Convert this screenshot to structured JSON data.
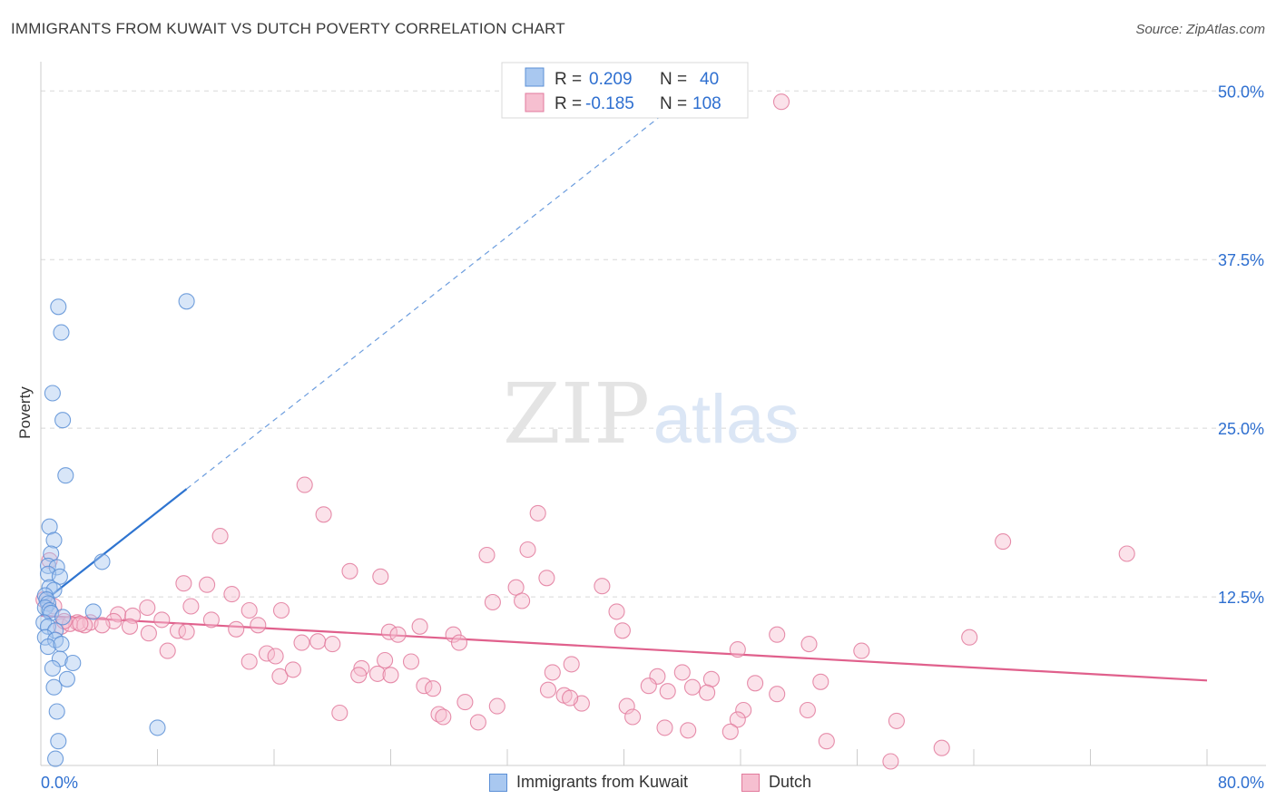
{
  "title": "IMMIGRANTS FROM KUWAIT VS DUTCH POVERTY CORRELATION CHART",
  "source": "Source: ZipAtlas.com",
  "colors": {
    "kuwait_fill": "#a9c8f0",
    "kuwait_stroke": "#5b8fd6",
    "kuwait_line": "#2e74d0",
    "dutch_fill": "#f6bfd0",
    "dutch_stroke": "#e27a9c",
    "dutch_line": "#e0608c",
    "value_text": "#2e6fd0",
    "grid": "#d8d8d8"
  },
  "watermark": {
    "part1": "ZIP",
    "part2": "atlas"
  },
  "legend_top": {
    "rows": [
      {
        "series": "Immigrants from Kuwait",
        "r_label": "R =",
        "r_value": "0.209",
        "n_label": "N =",
        "n_value": "40"
      },
      {
        "series": "Dutch",
        "r_label": "R =",
        "r_value": "-0.185",
        "n_label": "N =",
        "n_value": "108"
      }
    ]
  },
  "legend_bottom": [
    "Immigrants from Kuwait",
    "Dutch"
  ],
  "chart_data": {
    "type": "scatter",
    "title": "IMMIGRANTS FROM KUWAIT VS DUTCH POVERTY CORRELATION CHART",
    "xlabel": "",
    "ylabel": "Poverty",
    "xlim": [
      0,
      80
    ],
    "ylim": [
      0,
      51.5
    ],
    "x_tick_labels": [
      "0.0%",
      "80.0%"
    ],
    "y_ticks": [
      12.5,
      25.0,
      37.5,
      50.0
    ],
    "y_tick_labels": [
      "12.5%",
      "25.0%",
      "37.5%",
      "50.0%"
    ],
    "series": [
      {
        "name": "Immigrants from Kuwait",
        "r": 0.209,
        "n": 40,
        "trend": {
          "x0": 0,
          "y0": 12.0,
          "x1": 10,
          "y1": 20.5,
          "dashed_to_x": 44
        },
        "points": [
          [
            1.2,
            34.0
          ],
          [
            1.4,
            32.1
          ],
          [
            10.0,
            34.4
          ],
          [
            0.8,
            27.6
          ],
          [
            1.5,
            25.6
          ],
          [
            1.7,
            21.5
          ],
          [
            0.6,
            17.7
          ],
          [
            0.9,
            16.7
          ],
          [
            0.7,
            15.7
          ],
          [
            0.5,
            14.8
          ],
          [
            1.1,
            14.7
          ],
          [
            4.2,
            15.1
          ],
          [
            0.5,
            14.2
          ],
          [
            1.3,
            14.0
          ],
          [
            0.6,
            13.2
          ],
          [
            0.9,
            13.0
          ],
          [
            0.3,
            12.6
          ],
          [
            0.4,
            12.3
          ],
          [
            0.5,
            12.0
          ],
          [
            0.3,
            11.7
          ],
          [
            0.6,
            11.5
          ],
          [
            0.7,
            11.3
          ],
          [
            1.5,
            11.0
          ],
          [
            3.6,
            11.4
          ],
          [
            0.2,
            10.6
          ],
          [
            0.5,
            10.3
          ],
          [
            1.0,
            10.0
          ],
          [
            0.3,
            9.5
          ],
          [
            1.0,
            9.3
          ],
          [
            0.5,
            8.8
          ],
          [
            1.4,
            9.0
          ],
          [
            1.3,
            7.9
          ],
          [
            2.2,
            7.6
          ],
          [
            0.8,
            7.2
          ],
          [
            1.8,
            6.4
          ],
          [
            0.9,
            5.8
          ],
          [
            1.1,
            4.0
          ],
          [
            8.0,
            2.8
          ],
          [
            1.2,
            1.8
          ],
          [
            1.0,
            0.5
          ]
        ]
      },
      {
        "name": "Dutch",
        "r": -0.185,
        "n": 108,
        "trend": {
          "x0": 0,
          "y0": 11.1,
          "x1": 80,
          "y1": 6.3
        },
        "points": [
          [
            50.8,
            49.2
          ],
          [
            18.1,
            20.8
          ],
          [
            19.4,
            18.6
          ],
          [
            34.1,
            18.7
          ],
          [
            12.3,
            17.0
          ],
          [
            66.0,
            16.6
          ],
          [
            74.5,
            15.7
          ],
          [
            30.6,
            15.6
          ],
          [
            33.4,
            16.0
          ],
          [
            0.6,
            15.2
          ],
          [
            21.2,
            14.4
          ],
          [
            23.3,
            14.0
          ],
          [
            34.7,
            13.9
          ],
          [
            9.8,
            13.5
          ],
          [
            11.4,
            13.4
          ],
          [
            32.6,
            13.2
          ],
          [
            38.5,
            13.3
          ],
          [
            13.1,
            12.7
          ],
          [
            31.0,
            12.1
          ],
          [
            33.0,
            12.2
          ],
          [
            0.9,
            11.8
          ],
          [
            10.3,
            11.8
          ],
          [
            7.3,
            11.7
          ],
          [
            14.3,
            11.5
          ],
          [
            16.5,
            11.5
          ],
          [
            39.5,
            11.4
          ],
          [
            5.3,
            11.2
          ],
          [
            6.3,
            11.1
          ],
          [
            8.3,
            10.8
          ],
          [
            11.7,
            10.8
          ],
          [
            2.5,
            10.6
          ],
          [
            3.4,
            10.6
          ],
          [
            5.0,
            10.7
          ],
          [
            14.9,
            10.4
          ],
          [
            1.4,
            10.3
          ],
          [
            2.0,
            10.5
          ],
          [
            3.0,
            10.4
          ],
          [
            4.2,
            10.4
          ],
          [
            6.1,
            10.3
          ],
          [
            13.4,
            10.1
          ],
          [
            7.4,
            9.8
          ],
          [
            9.4,
            10.0
          ],
          [
            10.0,
            9.9
          ],
          [
            23.9,
            9.9
          ],
          [
            26.0,
            10.3
          ],
          [
            24.5,
            9.7
          ],
          [
            28.3,
            9.7
          ],
          [
            39.9,
            10.0
          ],
          [
            28.7,
            9.1
          ],
          [
            50.5,
            9.7
          ],
          [
            63.7,
            9.5
          ],
          [
            17.9,
            9.1
          ],
          [
            19.0,
            9.2
          ],
          [
            20.0,
            9.0
          ],
          [
            52.7,
            9.0
          ],
          [
            47.8,
            8.6
          ],
          [
            56.3,
            8.5
          ],
          [
            8.7,
            8.5
          ],
          [
            15.5,
            8.3
          ],
          [
            16.1,
            8.1
          ],
          [
            14.3,
            7.7
          ],
          [
            23.6,
            7.8
          ],
          [
            25.4,
            7.7
          ],
          [
            36.4,
            7.5
          ],
          [
            22.0,
            7.2
          ],
          [
            44.0,
            6.9
          ],
          [
            42.3,
            6.6
          ],
          [
            46.0,
            6.4
          ],
          [
            49.0,
            6.1
          ],
          [
            53.5,
            6.2
          ],
          [
            21.8,
            6.7
          ],
          [
            23.1,
            6.8
          ],
          [
            16.4,
            6.6
          ],
          [
            17.3,
            7.1
          ],
          [
            24.0,
            6.7
          ],
          [
            35.1,
            6.9
          ],
          [
            41.7,
            5.9
          ],
          [
            44.7,
            5.8
          ],
          [
            26.3,
            5.9
          ],
          [
            26.9,
            5.7
          ],
          [
            34.8,
            5.6
          ],
          [
            35.9,
            5.2
          ],
          [
            37.1,
            4.6
          ],
          [
            40.2,
            4.4
          ],
          [
            43.0,
            5.5
          ],
          [
            45.7,
            5.4
          ],
          [
            50.5,
            5.3
          ],
          [
            36.3,
            5.0
          ],
          [
            29.1,
            4.7
          ],
          [
            31.3,
            4.4
          ],
          [
            48.2,
            4.1
          ],
          [
            52.6,
            4.1
          ],
          [
            20.5,
            3.9
          ],
          [
            27.3,
            3.8
          ],
          [
            27.6,
            3.6
          ],
          [
            40.6,
            3.6
          ],
          [
            42.8,
            2.8
          ],
          [
            47.8,
            3.4
          ],
          [
            58.7,
            3.3
          ],
          [
            30.0,
            3.2
          ],
          [
            44.4,
            2.6
          ],
          [
            47.3,
            2.5
          ],
          [
            53.9,
            1.8
          ],
          [
            61.8,
            1.3
          ],
          [
            58.3,
            0.3
          ],
          [
            0.2,
            12.3
          ],
          [
            1.6,
            10.7
          ],
          [
            2.7,
            10.5
          ]
        ]
      }
    ]
  }
}
